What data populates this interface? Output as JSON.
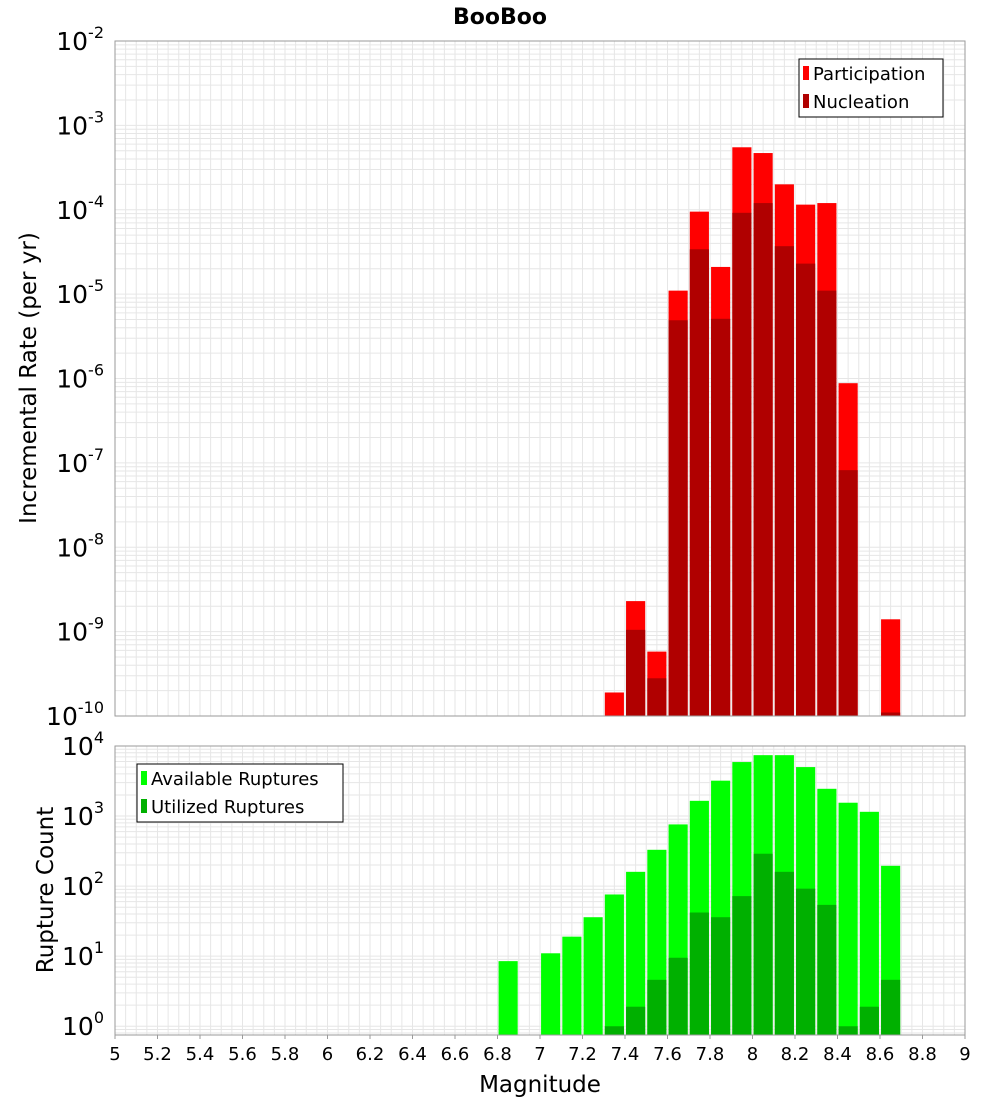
{
  "title": "BooBoo",
  "xlabel": "Magnitude",
  "x_ticks": [
    "5",
    "5.2",
    "5.4",
    "5.6",
    "5.8",
    "6",
    "6.2",
    "6.4",
    "6.6",
    "6.8",
    "7",
    "7.2",
    "7.4",
    "7.6",
    "7.8",
    "8",
    "8.2",
    "8.4",
    "8.6",
    "8.8",
    "9"
  ],
  "colors": {
    "participation": "#ff0000",
    "nucleation": "#b00000",
    "available": "#00ff00",
    "utilized": "#00b000",
    "grid": "#e6e6e6"
  },
  "chart_data": [
    {
      "type": "bar",
      "ylabel": "Incremental Rate (per yr)",
      "log_scale": true,
      "xlim": [
        5,
        9
      ],
      "ylim": [
        1e-10,
        0.01
      ],
      "grid": true,
      "legend_position": "top-right",
      "y_ticks": [
        {
          "base": "10",
          "exp": "-2"
        },
        {
          "base": "10",
          "exp": "-3"
        },
        {
          "base": "10",
          "exp": "-4"
        },
        {
          "base": "10",
          "exp": "-5"
        },
        {
          "base": "10",
          "exp": "-6"
        },
        {
          "base": "10",
          "exp": "-7"
        },
        {
          "base": "10",
          "exp": "-8"
        },
        {
          "base": "10",
          "exp": "-9"
        },
        {
          "base": "10",
          "exp": "-10"
        }
      ],
      "series": [
        {
          "name": "Participation",
          "color": "#ff0000",
          "points": [
            {
              "x": 7.35,
              "y": 1.9e-10
            },
            {
              "x": 7.45,
              "y": 2.3e-09
            },
            {
              "x": 7.55,
              "y": 5.8e-10
            },
            {
              "x": 7.65,
              "y": 1.1e-05
            },
            {
              "x": 7.75,
              "y": 9.5e-05
            },
            {
              "x": 7.85,
              "y": 2.1e-05
            },
            {
              "x": 7.95,
              "y": 0.00055
            },
            {
              "x": 8.05,
              "y": 0.00047
            },
            {
              "x": 8.15,
              "y": 0.0002
            },
            {
              "x": 8.25,
              "y": 0.000115
            },
            {
              "x": 8.35,
              "y": 0.00012
            },
            {
              "x": 8.45,
              "y": 8.8e-07
            },
            {
              "x": 8.65,
              "y": 1.4e-09
            }
          ]
        },
        {
          "name": "Nucleation",
          "color": "#b00000",
          "points": [
            {
              "x": 7.45,
              "y": 1.05e-09
            },
            {
              "x": 7.55,
              "y": 2.8e-10
            },
            {
              "x": 7.65,
              "y": 4.9e-06
            },
            {
              "x": 7.75,
              "y": 3.4e-05
            },
            {
              "x": 7.85,
              "y": 5.1e-06
            },
            {
              "x": 7.95,
              "y": 9.2e-05
            },
            {
              "x": 8.05,
              "y": 0.00012
            },
            {
              "x": 8.15,
              "y": 3.7e-05
            },
            {
              "x": 8.25,
              "y": 2.3e-05
            },
            {
              "x": 8.35,
              "y": 1.1e-05
            },
            {
              "x": 8.45,
              "y": 8.2e-08
            },
            {
              "x": 8.65,
              "y": 1.1e-10
            }
          ]
        }
      ]
    },
    {
      "type": "bar",
      "ylabel": "Rupture Count",
      "log_scale": true,
      "xlim": [
        5,
        9
      ],
      "ylim": [
        0.75,
        10000
      ],
      "grid": true,
      "legend_position": "top-left",
      "y_ticks": [
        {
          "base": "10",
          "exp": "4"
        },
        {
          "base": "10",
          "exp": "3"
        },
        {
          "base": "10",
          "exp": "2"
        },
        {
          "base": "10",
          "exp": "1"
        },
        {
          "base": "10",
          "exp": "0"
        }
      ],
      "series": [
        {
          "name": "Available Ruptures",
          "color": "#00ff00",
          "points": [
            {
              "x": 6.85,
              "y": 8.5
            },
            {
              "x": 7.05,
              "y": 11
            },
            {
              "x": 7.15,
              "y": 19
            },
            {
              "x": 7.25,
              "y": 36
            },
            {
              "x": 7.35,
              "y": 76
            },
            {
              "x": 7.45,
              "y": 160
            },
            {
              "x": 7.55,
              "y": 330
            },
            {
              "x": 7.65,
              "y": 760
            },
            {
              "x": 7.75,
              "y": 1650
            },
            {
              "x": 7.85,
              "y": 3200
            },
            {
              "x": 7.95,
              "y": 5900
            },
            {
              "x": 8.05,
              "y": 7400
            },
            {
              "x": 8.15,
              "y": 7400
            },
            {
              "x": 8.25,
              "y": 5000
            },
            {
              "x": 8.35,
              "y": 2450
            },
            {
              "x": 8.45,
              "y": 1550
            },
            {
              "x": 8.55,
              "y": 1150
            },
            {
              "x": 8.65,
              "y": 195
            }
          ]
        },
        {
          "name": "Utilized Ruptures",
          "color": "#00b000",
          "points": [
            {
              "x": 7.35,
              "y": 1
            },
            {
              "x": 7.45,
              "y": 1.9
            },
            {
              "x": 7.55,
              "y": 4.6
            },
            {
              "x": 7.65,
              "y": 9.5
            },
            {
              "x": 7.75,
              "y": 42
            },
            {
              "x": 7.85,
              "y": 36
            },
            {
              "x": 7.95,
              "y": 72
            },
            {
              "x": 8.05,
              "y": 290
            },
            {
              "x": 8.15,
              "y": 160
            },
            {
              "x": 8.25,
              "y": 92
            },
            {
              "x": 8.35,
              "y": 54
            },
            {
              "x": 8.45,
              "y": 1
            },
            {
              "x": 8.55,
              "y": 1.9
            },
            {
              "x": 8.65,
              "y": 4.6
            }
          ]
        }
      ]
    }
  ]
}
